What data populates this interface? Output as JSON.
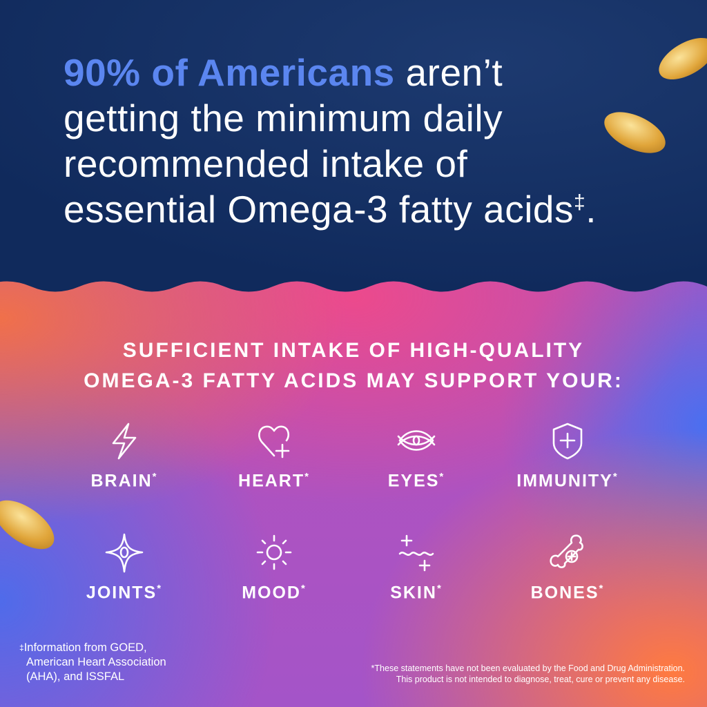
{
  "headline": {
    "highlight": "90% of Americans",
    "line1_rest": " aren’t",
    "line2": "getting the minimum daily",
    "line3": "recommended intake of",
    "line4": "essential Omega-3 fatty acids",
    "dagger": "‡",
    "period": "."
  },
  "subhead": {
    "line1": "SUFFICIENT INTAKE OF HIGH-QUALITY",
    "line2": "OMEGA-3 FATTY ACIDS MAY SUPPORT YOUR:"
  },
  "benefits": [
    {
      "label": "BRAIN",
      "icon": "lightning-icon"
    },
    {
      "label": "HEART",
      "icon": "heart-plus-icon"
    },
    {
      "label": "EYES",
      "icon": "eye-icon"
    },
    {
      "label": "IMMUNITY",
      "icon": "shield-plus-icon"
    },
    {
      "label": "JOINTS",
      "icon": "sparkle-joint-icon"
    },
    {
      "label": "MOOD",
      "icon": "sun-icon"
    },
    {
      "label": "SKIN",
      "icon": "wave-sparkle-icon"
    },
    {
      "label": "BONES",
      "icon": "bone-plus-icon"
    }
  ],
  "asterisk": "*",
  "footnote_left": {
    "dagger": "‡",
    "line1": "Information from GOED,",
    "line2": "American Heart Association",
    "line3": "(AHA), and ISSFAL"
  },
  "footnote_right": {
    "line1": "*These statements have not been evaluated by the Food and Drug Administration.",
    "line2": "This product is not intended to diagnose, treat, cure or prevent any disease."
  },
  "colors": {
    "navy": "#122b5e",
    "highlight": "#5b86f0",
    "capsule": "#e0a53a"
  }
}
